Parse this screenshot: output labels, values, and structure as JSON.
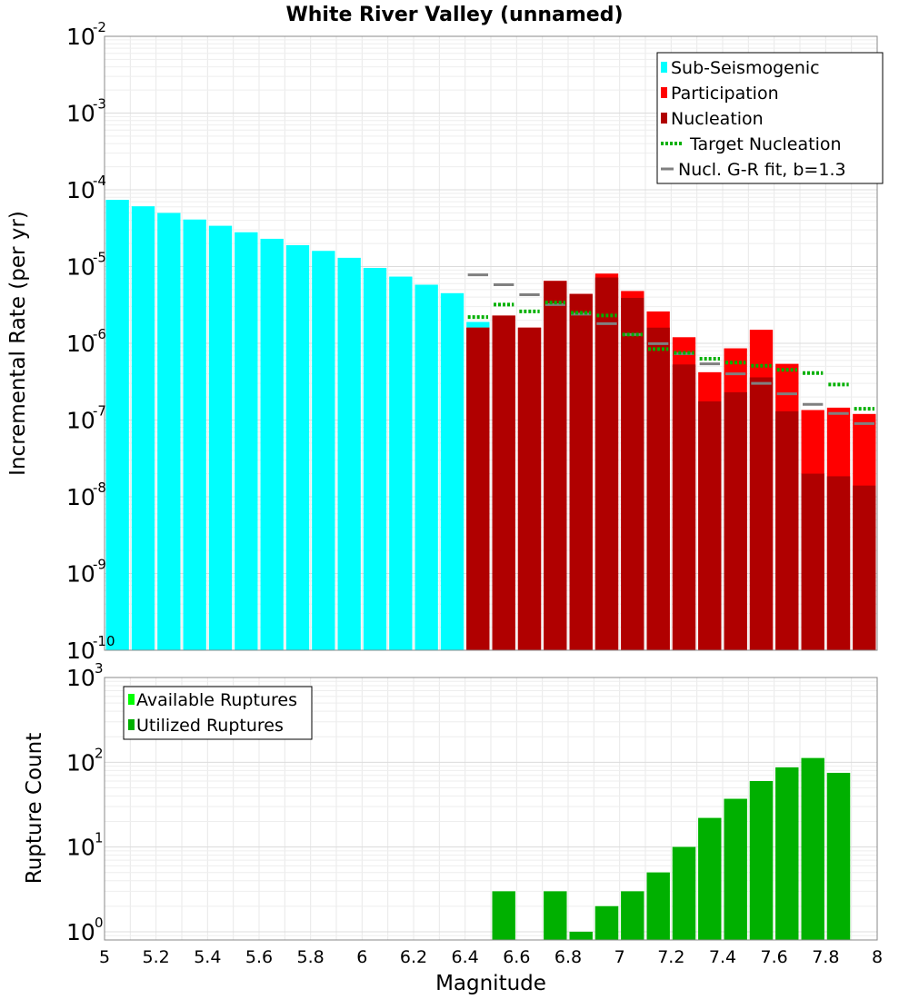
{
  "chart_data": [
    {
      "type": "bar",
      "title": "White River Valley (unnamed)",
      "xlabel": "",
      "ylabel": "Incremental Rate (per yr)",
      "xlim": [
        5,
        8
      ],
      "ylim": [
        1e-10,
        0.01
      ],
      "yscale": "log",
      "bin_width": 0.1,
      "grid": true,
      "legend_position": "top-right",
      "ytick_labels": [
        {
          "base": "10",
          "exp": "-2",
          "value": 0.01
        },
        {
          "base": "10",
          "exp": "-3",
          "value": 0.001
        },
        {
          "base": "10",
          "exp": "-4",
          "value": 0.0001
        },
        {
          "base": "10",
          "exp": "-5",
          "value": 1e-05
        },
        {
          "base": "10",
          "exp": "-6",
          "value": 1e-06
        },
        {
          "base": "10",
          "exp": "-7",
          "value": 1e-07
        },
        {
          "base": "10",
          "exp": "-8",
          "value": 1e-08
        },
        {
          "base": "10",
          "exp": "-9",
          "value": 1e-09
        },
        {
          "base": "10",
          "exp": "-10",
          "value": 1e-10
        }
      ],
      "series": [
        {
          "name": "Sub-Seismogenic",
          "color": "#00ffff",
          "x": [
            5.05,
            5.15,
            5.25,
            5.35,
            5.45,
            5.55,
            5.65,
            5.75,
            5.85,
            5.95,
            6.05,
            6.15,
            6.25,
            6.35,
            6.45
          ],
          "values": [
            7.4e-05,
            6.1e-05,
            5e-05,
            4.1e-05,
            3.4e-05,
            2.8e-05,
            2.3e-05,
            1.9e-05,
            1.6e-05,
            1.3e-05,
            9.6e-06,
            7.4e-06,
            5.8e-06,
            4.5e-06,
            1.9e-06
          ]
        },
        {
          "name": "Participation",
          "color": "#ff0000",
          "x": [
            6.45,
            6.55,
            6.65,
            6.75,
            6.85,
            6.95,
            7.05,
            7.15,
            7.25,
            7.35,
            7.45,
            7.55,
            7.65,
            7.75,
            7.85,
            7.95
          ],
          "values": [
            1.6e-06,
            2.3e-06,
            1.6e-06,
            6.5e-06,
            4.4e-06,
            8.1e-06,
            4.8e-06,
            2.6e-06,
            1.2e-06,
            4.2e-07,
            8.6e-07,
            1.5e-06,
            5.4e-07,
            1.35e-07,
            1.45e-07,
            1.2e-07
          ]
        },
        {
          "name": "Nucleation",
          "color": "#b00000",
          "x": [
            6.45,
            6.55,
            6.65,
            6.75,
            6.85,
            6.95,
            7.05,
            7.15,
            7.25,
            7.35,
            7.45,
            7.55,
            7.65,
            7.75,
            7.85,
            7.95
          ],
          "values": [
            1.6e-06,
            2.3e-06,
            1.6e-06,
            6.5e-06,
            4.4e-06,
            7.2e-06,
            3.9e-06,
            1.6e-06,
            5.3e-07,
            1.75e-07,
            2.3e-07,
            3.6e-07,
            1.3e-07,
            2e-08,
            1.85e-08,
            1.4e-08
          ]
        },
        {
          "name": "Target Nucleation",
          "color": "#00b000",
          "x": [
            6.45,
            6.55,
            6.65,
            6.75,
            6.85,
            6.95,
            7.05,
            7.15,
            7.25,
            7.35,
            7.45,
            7.55,
            7.65,
            7.75,
            7.85,
            7.95
          ],
          "values": [
            2.2e-06,
            3.2e-06,
            2.6e-06,
            3.4e-06,
            2.5e-06,
            2.3e-06,
            1.3e-06,
            8.4e-07,
            7.5e-07,
            6.3e-07,
            5.6e-07,
            5.1e-07,
            4.5e-07,
            4.1e-07,
            2.9e-07,
            1.4e-07
          ]
        },
        {
          "name": "Nucl. G-R fit, b=1.3",
          "color": "#808080",
          "x": [
            6.45,
            6.55,
            6.65,
            6.75,
            6.85,
            6.95,
            7.05,
            7.15,
            7.25,
            7.35,
            7.45,
            7.55,
            7.65,
            7.75,
            7.85,
            7.95
          ],
          "values": [
            7.8e-06,
            5.8e-06,
            4.3e-06,
            3.2e-06,
            2.4e-06,
            1.8e-06,
            1.3e-06,
            9.9e-07,
            7.3e-07,
            5.4e-07,
            4e-07,
            3e-07,
            2.2e-07,
            1.6e-07,
            1.22e-07,
            9e-08
          ]
        }
      ],
      "legend": [
        {
          "label": "Sub-Seismogenic",
          "style": "box",
          "color": "#00ffff"
        },
        {
          "label": "Participation",
          "style": "box",
          "color": "#ff0000"
        },
        {
          "label": "Nucleation",
          "style": "box",
          "color": "#b00000"
        },
        {
          "label": "Target Nucleation",
          "style": "dotted",
          "color": "#00b000"
        },
        {
          "label": "Nucl. G-R fit, b=1.3",
          "style": "line",
          "color": "#808080"
        }
      ]
    },
    {
      "type": "bar",
      "title": "",
      "xlabel": "Magnitude",
      "ylabel": "Rupture Count",
      "xlim": [
        5,
        8
      ],
      "ylim": [
        0.8,
        1000
      ],
      "yscale": "log",
      "bin_width": 0.1,
      "grid": true,
      "legend_position": "top-left",
      "xtick_labels": [
        "5",
        "5.2",
        "5.4",
        "5.6",
        "5.8",
        "6",
        "6.2",
        "6.4",
        "6.6",
        "6.8",
        "7",
        "7.2",
        "7.4",
        "7.6",
        "7.8",
        "8"
      ],
      "xtick_values": [
        5,
        5.2,
        5.4,
        5.6,
        5.8,
        6,
        6.2,
        6.4,
        6.6,
        6.8,
        7,
        7.2,
        7.4,
        7.6,
        7.8,
        8
      ],
      "ytick_labels": [
        {
          "base": "10",
          "exp": "3",
          "value": 1000
        },
        {
          "base": "10",
          "exp": "2",
          "value": 100
        },
        {
          "base": "10",
          "exp": "1",
          "value": 10
        },
        {
          "base": "10",
          "exp": "0",
          "value": 1
        }
      ],
      "series": [
        {
          "name": "Available Ruptures",
          "color": "#00ff00",
          "x": [
            6.55,
            6.75,
            6.85,
            6.95,
            7.05,
            7.15,
            7.25,
            7.35,
            7.45,
            7.55,
            7.65,
            7.75,
            7.85
          ],
          "values": [
            3,
            3,
            1,
            2,
            3,
            5,
            10,
            22,
            37,
            60,
            87,
            112,
            75
          ]
        },
        {
          "name": "Utilized Ruptures",
          "color": "#00b000",
          "x": [
            6.55,
            6.75,
            6.85,
            6.95,
            7.05,
            7.15,
            7.25,
            7.35,
            7.45,
            7.55,
            7.65,
            7.75,
            7.85
          ],
          "values": [
            3,
            3,
            1,
            2,
            3,
            5,
            10,
            22,
            37,
            60,
            87,
            112,
            75
          ]
        }
      ],
      "legend": [
        {
          "label": "Available Ruptures",
          "style": "box",
          "color": "#00ff00"
        },
        {
          "label": "Utilized Ruptures",
          "style": "box",
          "color": "#00b000"
        }
      ]
    }
  ]
}
